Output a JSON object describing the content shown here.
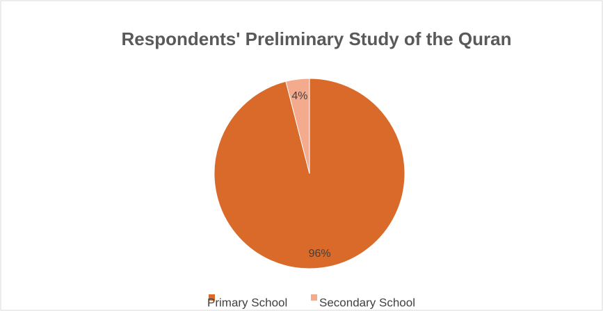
{
  "chart_data": {
    "type": "pie",
    "title": "Respondents' Preliminary Study of the Quran",
    "categories": [
      "Primary School",
      "Secondary School"
    ],
    "values": [
      96,
      4
    ],
    "value_labels": [
      "96%",
      "4%"
    ],
    "colors": [
      "#d96a2a",
      "#f4aa8c"
    ]
  }
}
